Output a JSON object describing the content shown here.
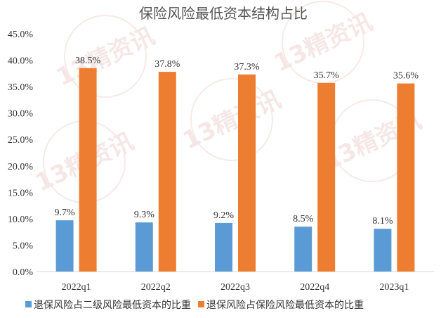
{
  "chart_data": {
    "type": "bar",
    "title": "保险风险最低资本结构占比",
    "categories": [
      "2022q1",
      "2022q2",
      "2022q3",
      "2022q4",
      "2023q1"
    ],
    "series": [
      {
        "name": "退保风险占二级风险最低资本的比重",
        "color": "#5B9BD5",
        "values": [
          9.7,
          9.3,
          9.2,
          8.5,
          8.1
        ],
        "labels": [
          "9.7%",
          "9.3%",
          "9.2%",
          "8.5%",
          "8.1%"
        ]
      },
      {
        "name": "退保风险占保险风险最低资本的比重",
        "color": "#ED7D31",
        "values": [
          38.5,
          37.8,
          37.3,
          35.7,
          35.6
        ],
        "labels": [
          "38.5%",
          "37.8%",
          "37.3%",
          "35.7%",
          "35.6%"
        ]
      }
    ],
    "ylim": [
      0,
      45
    ],
    "yticks": [
      "0.0%",
      "5.0%",
      "10.0%",
      "15.0%",
      "20.0%",
      "25.0%",
      "30.0%",
      "35.0%",
      "40.0%",
      "45.0%"
    ],
    "grid": false,
    "legend_position": "bottom",
    "xlabel": "",
    "ylabel": ""
  },
  "watermark": {
    "text": "13精资讯"
  }
}
